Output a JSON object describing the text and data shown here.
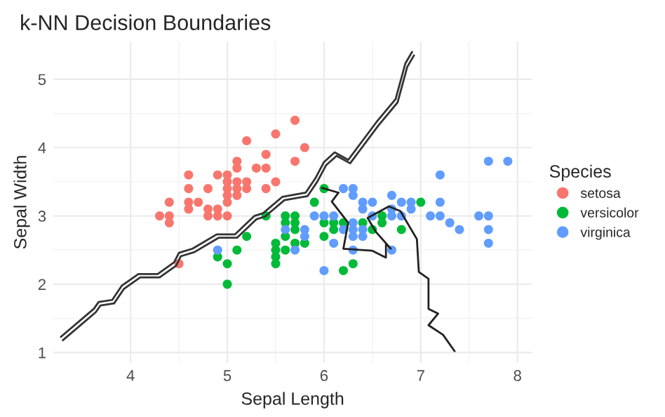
{
  "chart_data": {
    "type": "scatter",
    "title": "k-NN Decision Boundaries",
    "xlabel": "Sepal Length",
    "ylabel": "Sepal Width",
    "legend_title": "Species",
    "legend": "right",
    "grid": true,
    "marker": "circle",
    "xlim": [
      3.2,
      8.15
    ],
    "ylim": [
      0.85,
      5.55
    ],
    "xticks": [
      4,
      5,
      6,
      7,
      8
    ],
    "yticks": [
      1,
      2,
      3,
      4,
      5
    ],
    "series": [
      {
        "type": "line",
        "marker": "none",
        "color": "#333333",
        "x": [
          3.28,
          3.62,
          3.67,
          3.81,
          3.91,
          4.08,
          4.28,
          4.45,
          4.5,
          4.64,
          4.89,
          5.08,
          5.28,
          5.37,
          5.57,
          5.81,
          5.91,
          6.0,
          6.11,
          6.25,
          6.54,
          6.74,
          6.84,
          6.91
        ],
        "values": [
          1.23,
          1.64,
          1.74,
          1.77,
          1.98,
          2.15,
          2.15,
          2.32,
          2.46,
          2.52,
          2.73,
          2.73,
          3.0,
          3.04,
          3.28,
          3.34,
          3.55,
          3.79,
          3.93,
          3.82,
          4.37,
          4.71,
          5.23,
          5.4
        ]
      },
      {
        "type": "line",
        "marker": "none",
        "color": "#333333",
        "x": [
          3.3,
          3.64,
          3.69,
          3.83,
          3.93,
          4.1,
          4.3,
          4.47,
          4.52,
          4.66,
          4.91,
          5.1,
          5.3,
          5.39,
          5.59,
          5.83,
          5.93,
          6.02,
          6.13,
          6.27,
          6.56,
          6.76,
          6.86,
          6.93
        ],
        "values": [
          1.18,
          1.59,
          1.69,
          1.72,
          1.93,
          2.1,
          2.1,
          2.27,
          2.41,
          2.47,
          2.68,
          2.68,
          2.95,
          2.99,
          3.23,
          3.29,
          3.5,
          3.74,
          3.88,
          3.77,
          4.32,
          4.66,
          5.18,
          5.35
        ]
      },
      {
        "type": "line",
        "marker": "none",
        "color": "#222222",
        "x": [
          5.98,
          6.15,
          6.08,
          6.25,
          6.2,
          6.5,
          6.64,
          6.64,
          6.69,
          6.54,
          6.45,
          6.67,
          6.79,
          6.86,
          6.96,
          6.98,
          7.08,
          7.08,
          7.18,
          7.08,
          7.23,
          7.35
        ],
        "values": [
          3.41,
          3.34,
          3.21,
          2.9,
          2.52,
          2.49,
          2.39,
          2.59,
          2.52,
          2.76,
          2.97,
          3.14,
          3.07,
          2.9,
          2.66,
          2.18,
          2.08,
          1.64,
          1.57,
          1.4,
          1.26,
          1.02
        ]
      },
      {
        "name": "setosa",
        "color": "#f8766d",
        "x": [
          5.1,
          4.9,
          4.7,
          4.6,
          5.0,
          5.4,
          4.6,
          5.0,
          4.4,
          4.9,
          5.4,
          4.8,
          4.8,
          4.3,
          5.8,
          5.7,
          5.7,
          5.1,
          5.4,
          5.1,
          4.6,
          5.1,
          5.0,
          5.2,
          5.2,
          4.8,
          5.2,
          5.5,
          5.0,
          5.5,
          4.9,
          4.4,
          5.1,
          5.0,
          4.5,
          4.4,
          4.6,
          5.3,
          5.0
        ],
        "values": [
          3.5,
          3.0,
          3.2,
          3.1,
          3.6,
          3.9,
          3.4,
          3.4,
          2.9,
          3.1,
          3.7,
          3.4,
          3.0,
          3.0,
          4.0,
          4.4,
          3.8,
          3.8,
          3.4,
          3.7,
          3.6,
          3.3,
          3.0,
          3.5,
          3.4,
          3.1,
          4.1,
          4.2,
          3.2,
          3.5,
          3.6,
          3.0,
          3.4,
          3.5,
          2.3,
          3.2,
          3.2,
          3.7,
          3.3
        ]
      },
      {
        "name": "versicolor",
        "color": "#00ba38",
        "x": [
          7.0,
          6.9,
          5.5,
          6.5,
          5.7,
          4.9,
          6.6,
          5.2,
          5.0,
          6.1,
          5.6,
          5.6,
          6.2,
          5.6,
          5.9,
          6.1,
          6.4,
          6.6,
          6.8,
          6.0,
          5.7,
          5.5,
          6.0,
          5.4,
          6.0,
          6.3,
          5.5,
          5.5,
          5.8,
          5.0,
          5.6,
          5.7,
          5.7,
          6.2,
          5.1
        ],
        "values": [
          3.2,
          null,
          2.3,
          2.8,
          2.8,
          2.4,
          2.9,
          2.7,
          2.0,
          2.9,
          2.9,
          3.0,
          2.2,
          2.5,
          3.2,
          2.8,
          2.9,
          3.0,
          2.8,
          2.9,
          2.6,
          2.4,
          2.7,
          3.0,
          3.4,
          2.3,
          2.5,
          2.6,
          2.6,
          2.3,
          2.7,
          3.0,
          2.9,
          2.9,
          2.5
        ]
      },
      {
        "name": "virginica",
        "color": "#619cff",
        "x": [
          6.3,
          5.8,
          7.1,
          6.3,
          6.5,
          7.6,
          4.9,
          7.3,
          6.7,
          7.2,
          6.5,
          6.4,
          6.8,
          5.7,
          5.8,
          6.4,
          7.7,
          7.7,
          6.0,
          6.9,
          5.6,
          7.7,
          6.3,
          6.7,
          7.2,
          6.2,
          6.1,
          6.4,
          7.2,
          7.4,
          7.9,
          6.3,
          6.1,
          7.7,
          6.3,
          6.4,
          6.0,
          6.9,
          6.7,
          6.8,
          6.7,
          6.3,
          6.2,
          5.9
        ],
        "values": [
          3.3,
          2.7,
          3.0,
          2.9,
          3.0,
          3.0,
          2.5,
          2.9,
          2.5,
          3.6,
          3.2,
          2.7,
          3.0,
          2.5,
          2.8,
          3.2,
          3.8,
          2.6,
          2.2,
          3.2,
          2.8,
          2.8,
          2.7,
          3.3,
          3.2,
          2.8,
          3.0,
          2.8,
          3.0,
          2.8,
          3.8,
          2.8,
          2.6,
          3.0,
          3.4,
          3.1,
          3.0,
          3.1,
          3.1,
          3.2,
          3.0,
          2.5,
          3.4,
          3.0
        ]
      }
    ]
  }
}
